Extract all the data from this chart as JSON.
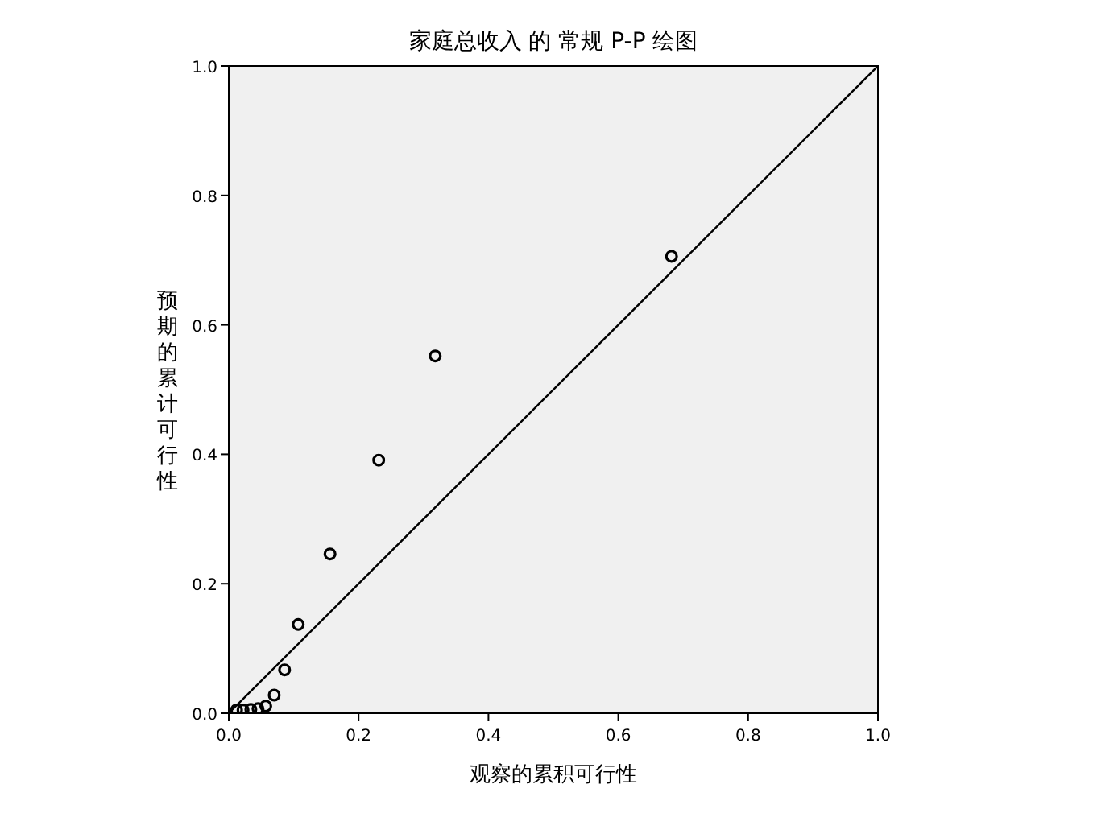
{
  "chart_data": {
    "type": "scatter",
    "title": "家庭总收入 的 常规 P-P 绘图",
    "xlabel": "观察的累积可行性",
    "ylabel": "预期的累计可行性",
    "xlim": [
      0,
      1
    ],
    "ylim": [
      0,
      1
    ],
    "xticks": [
      {
        "value": 0,
        "label": "0.0"
      },
      {
        "value": 0.2,
        "label": "0.2"
      },
      {
        "value": 0.4,
        "label": "0.4"
      },
      {
        "value": 0.6,
        "label": "0.6"
      },
      {
        "value": 0.8,
        "label": "0.8"
      },
      {
        "value": 1,
        "label": "1.0"
      }
    ],
    "yticks": [
      {
        "value": 0,
        "label": "0.0"
      },
      {
        "value": 0.2,
        "label": "0.2"
      },
      {
        "value": 0.4,
        "label": "0.4"
      },
      {
        "value": 0.6,
        "label": "0.6"
      },
      {
        "value": 0.8,
        "label": "0.8"
      },
      {
        "value": 1,
        "label": "1.0"
      }
    ],
    "grid": false,
    "series": [
      {
        "marker": "circle",
        "color": "#000000",
        "x": [
          0.012,
          0.022,
          0.034,
          0.045,
          0.057,
          0.07,
          0.086,
          0.107,
          0.156,
          0.231,
          0.318,
          0.682
        ],
        "values": [
          0.005,
          0.005,
          0.006,
          0.007,
          0.011,
          0.028,
          0.067,
          0.137,
          0.246,
          0.391,
          0.552,
          0.706
        ]
      },
      {
        "type": "line",
        "marker": "none",
        "color": "#000000",
        "x": [
          0,
          1
        ],
        "values": [
          0,
          1
        ]
      }
    ]
  }
}
